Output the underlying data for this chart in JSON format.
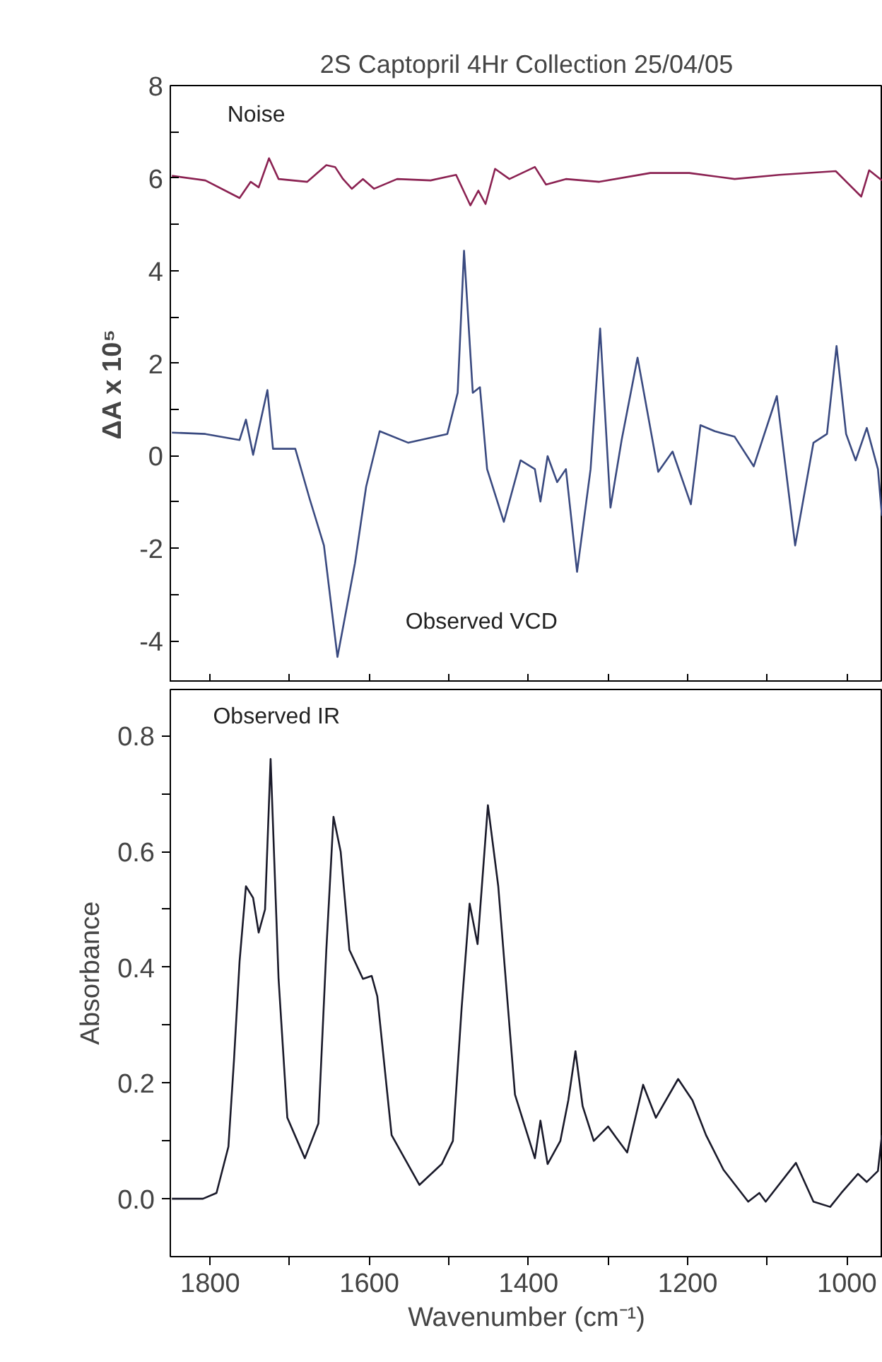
{
  "chart_data": [
    {
      "type": "line",
      "title": "2S Captopril 4Hr Collection 25/04/05",
      "ylabel": "ΔA x 10⁵",
      "xlim": [
        1850,
        955
      ],
      "ylim": [
        -4.9,
        8
      ],
      "xticks": [
        1800,
        {
          "value": 1700,
          "label": null
        },
        1600,
        {
          "value": 1500,
          "label": null
        },
        1400,
        {
          "value": 1300,
          "label": null
        },
        1200,
        {
          "value": 1100,
          "label": null
        },
        1000
      ],
      "yticks": [
        -4,
        {
          "value": -3,
          "label": null
        },
        -2,
        {
          "value": -1,
          "label": null
        },
        0,
        {
          "value": 1,
          "label": null
        },
        2,
        {
          "value": 3,
          "label": null
        },
        4,
        {
          "value": 5,
          "label": null
        },
        6,
        {
          "value": 7,
          "label": null
        },
        8
      ],
      "tick_labels": "y",
      "grid": false,
      "series": [
        {
          "name": "Noise",
          "color": "#8b2252",
          "x": [
            1848,
            1806,
            1763,
            1749,
            1739,
            1726,
            1714,
            1678,
            1654,
            1643,
            1633,
            1622,
            1608,
            1594,
            1565,
            1523,
            1491,
            1473,
            1463,
            1454,
            1442,
            1424,
            1392,
            1378,
            1353,
            1311,
            1247,
            1198,
            1141,
            1085,
            1014,
            982,
            972,
            956
          ],
          "values": [
            6.05,
            5.95,
            5.57,
            5.92,
            5.8,
            6.43,
            5.98,
            5.92,
            6.28,
            6.24,
            5.98,
            5.77,
            5.98,
            5.77,
            5.98,
            5.95,
            6.07,
            5.41,
            5.73,
            5.44,
            6.2,
            5.98,
            6.24,
            5.86,
            5.98,
            5.92,
            6.11,
            6.11,
            5.98,
            6.07,
            6.15,
            5.6,
            6.17,
            5.95
          ]
        },
        {
          "name": "Observed VCD",
          "color": "#3a4a80",
          "x": [
            1848,
            1806,
            1763,
            1755,
            1746,
            1728,
            1721,
            1693,
            1675,
            1657,
            1640,
            1629,
            1618,
            1604,
            1587,
            1551,
            1502,
            1489,
            1481,
            1470,
            1461,
            1452,
            1431,
            1410,
            1392,
            1385,
            1376,
            1364,
            1353,
            1339,
            1322,
            1310,
            1297,
            1283,
            1263,
            1237,
            1219,
            1196,
            1184,
            1166,
            1141,
            1117,
            1088,
            1065,
            1042,
            1025,
            1013,
            1001,
            989,
            975,
            961,
            956
          ],
          "values": [
            0.5,
            0.47,
            0.34,
            0.78,
            0.02,
            1.42,
            0.15,
            0.15,
            -0.93,
            -1.94,
            -4.35,
            -3.34,
            -2.32,
            -0.67,
            0.53,
            0.28,
            0.47,
            1.36,
            4.43,
            1.36,
            1.48,
            -0.29,
            -1.43,
            -0.1,
            -0.29,
            -0.99,
            -0.01,
            -0.57,
            -0.29,
            -2.51,
            -0.29,
            2.75,
            -1.12,
            0.34,
            2.12,
            -0.35,
            0.09,
            -1.05,
            0.66,
            0.53,
            0.41,
            -0.23,
            1.29,
            -1.94,
            0.28,
            0.47,
            2.37,
            0.47,
            -0.1,
            0.6,
            -0.29,
            -1.3
          ]
        }
      ]
    },
    {
      "type": "line",
      "xlabel": "Wavenumber (cm⁻¹)",
      "ylabel": "Absorbance",
      "xlim": [
        1850,
        955
      ],
      "ylim": [
        -0.1,
        0.88
      ],
      "xticks": [
        1800,
        {
          "value": 1700,
          "label": null
        },
        1600,
        {
          "value": 1500,
          "label": null
        },
        1400,
        {
          "value": 1300,
          "label": null
        },
        1200,
        {
          "value": 1100,
          "label": null
        },
        1000
      ],
      "yticks": [
        {
          "value": 0,
          "label": "0.0"
        },
        {
          "value": 0.1,
          "label": null
        },
        0.2,
        {
          "value": 0.3,
          "label": null
        },
        0.4,
        {
          "value": 0.5,
          "label": null
        },
        0.6,
        {
          "value": 0.7,
          "label": null
        },
        0.8
      ],
      "grid": false,
      "series": [
        {
          "name": "Observed IR",
          "color": "#1a1a2a",
          "x": [
            1848,
            1809,
            1792,
            1777,
            1770,
            1763,
            1755,
            1746,
            1739,
            1731,
            1724,
            1714,
            1703,
            1681,
            1664,
            1654,
            1645,
            1636,
            1625,
            1608,
            1597,
            1590,
            1572,
            1537,
            1509,
            1495,
            1484,
            1474,
            1464,
            1451,
            1438,
            1417,
            1392,
            1385,
            1376,
            1360,
            1350,
            1341,
            1332,
            1318,
            1300,
            1290,
            1276,
            1256,
            1240,
            1212,
            1194,
            1177,
            1155,
            1124,
            1110,
            1102,
            1064,
            1042,
            1021,
            1007,
            986,
            975,
            961,
            956
          ],
          "values": [
            0.0,
            0.0,
            0.01,
            0.09,
            0.24,
            0.41,
            0.54,
            0.52,
            0.46,
            0.5,
            0.76,
            0.38,
            0.14,
            0.07,
            0.13,
            0.43,
            0.66,
            0.6,
            0.43,
            0.38,
            0.385,
            0.35,
            0.11,
            0.024,
            0.06,
            0.1,
            0.33,
            0.51,
            0.44,
            0.68,
            0.54,
            0.18,
            0.07,
            0.135,
            0.06,
            0.1,
            0.17,
            0.255,
            0.16,
            0.1,
            0.125,
            0.106,
            0.08,
            0.197,
            0.14,
            0.207,
            0.17,
            0.11,
            0.05,
            -0.005,
            0.01,
            -0.005,
            0.062,
            -0.005,
            -0.014,
            0.01,
            0.043,
            0.029,
            0.048,
            0.11
          ]
        }
      ]
    }
  ]
}
